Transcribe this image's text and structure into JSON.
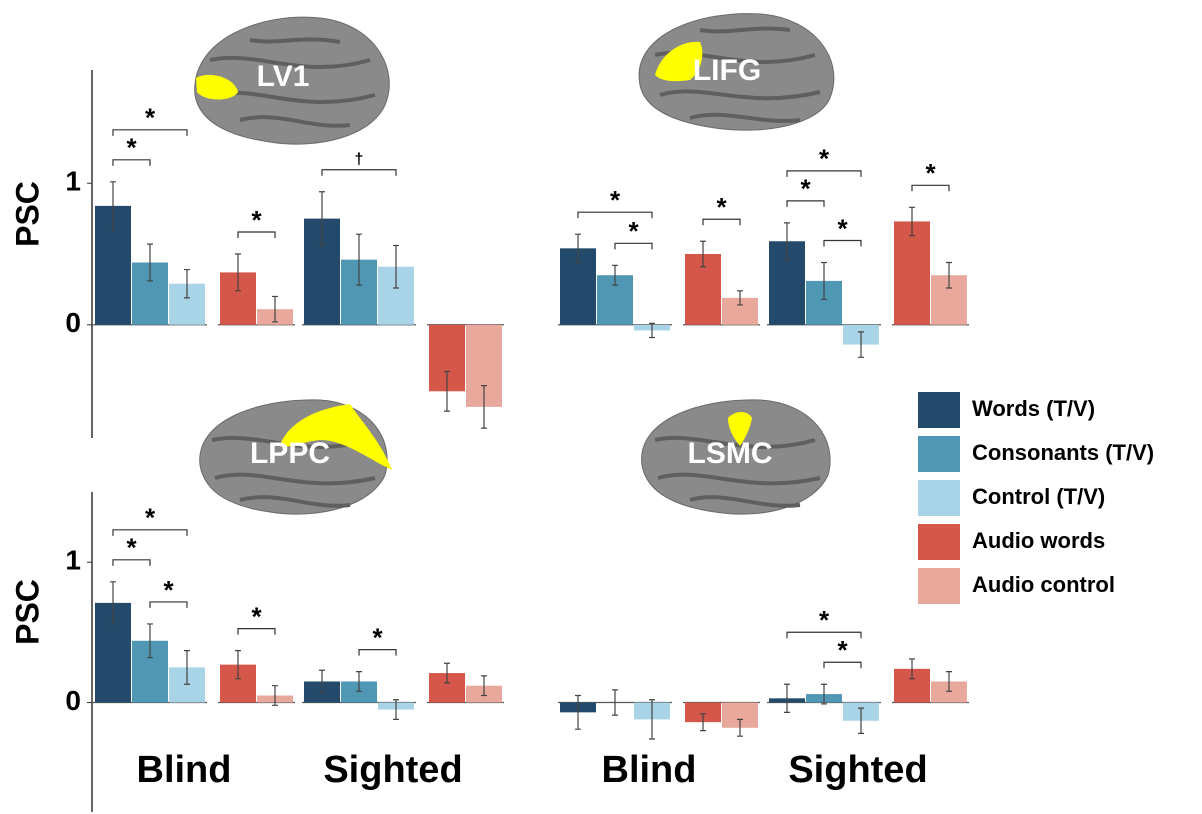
{
  "chart_data": [
    {
      "type": "bar",
      "title": "LV1",
      "ylabel": "PSC",
      "ylim": [
        -0.8,
        1.8
      ],
      "yticks": [
        0,
        1
      ],
      "categories": [
        null,
        null
      ],
      "series": [
        {
          "name": "Words (T/V)",
          "color": "#234a6b",
          "values": [
            0.84,
            0.75
          ],
          "errors": [
            0.17,
            0.19
          ]
        },
        {
          "name": "Consonants (T/V)",
          "color": "#4f97b3",
          "values": [
            0.44,
            0.46
          ],
          "errors": [
            0.13,
            0.18
          ]
        },
        {
          "name": "Control (T/V)",
          "color": "#a9d3e6",
          "values": [
            0.29,
            0.41
          ],
          "errors": [
            0.1,
            0.15
          ]
        },
        {
          "name": "Audio words",
          "color": "#d4574a",
          "values": [
            0.37,
            -0.47
          ],
          "errors": [
            0.13,
            0.14
          ]
        },
        {
          "name": "Audio control",
          "color": "#e8a89c",
          "values": [
            0.11,
            -0.58
          ],
          "errors": [
            0.09,
            0.15
          ]
        }
      ],
      "comparisons": [
        {
          "label": "*",
          "category": 0,
          "from": 0,
          "to": 1
        },
        {
          "label": "*",
          "category": 0,
          "from": 0,
          "to": 2
        },
        {
          "label": "*",
          "category": 0,
          "from": 3,
          "to": 4
        },
        {
          "label": "†",
          "category": 1,
          "from": 0,
          "to": 2
        }
      ]
    },
    {
      "type": "bar",
      "title": "LIFG",
      "ylim": [
        -0.8,
        1.8
      ],
      "categories": [
        null,
        null
      ],
      "series": [
        {
          "name": "Words (T/V)",
          "color": "#234a6b",
          "values": [
            0.54,
            0.59
          ],
          "errors": [
            0.1,
            0.13
          ]
        },
        {
          "name": "Consonants (T/V)",
          "color": "#4f97b3",
          "values": [
            0.35,
            0.31
          ],
          "errors": [
            0.07,
            0.13
          ]
        },
        {
          "name": "Control (T/V)",
          "color": "#a9d3e6",
          "values": [
            -0.04,
            -0.14
          ],
          "errors": [
            0.05,
            0.09
          ]
        },
        {
          "name": "Audio words",
          "color": "#d4574a",
          "values": [
            0.5,
            0.73
          ],
          "errors": [
            0.09,
            0.1
          ]
        },
        {
          "name": "Audio control",
          "color": "#e8a89c",
          "values": [
            0.19,
            0.35
          ],
          "errors": [
            0.05,
            0.09
          ]
        }
      ],
      "comparisons": [
        {
          "label": "*",
          "category": 0,
          "from": 1,
          "to": 2
        },
        {
          "label": "*",
          "category": 0,
          "from": 0,
          "to": 2
        },
        {
          "label": "*",
          "category": 0,
          "from": 3,
          "to": 4
        },
        {
          "label": "*",
          "category": 1,
          "from": 1,
          "to": 2
        },
        {
          "label": "*",
          "category": 1,
          "from": 0,
          "to": 1
        },
        {
          "label": "*",
          "category": 1,
          "from": 0,
          "to": 2
        },
        {
          "label": "*",
          "category": 1,
          "from": 3,
          "to": 4
        }
      ]
    },
    {
      "type": "bar",
      "title": "LPPC",
      "ylabel": "PSC",
      "ylim": [
        -0.78,
        1.5
      ],
      "yticks": [
        0,
        1
      ],
      "categories": [
        "Blind",
        "Sighted"
      ],
      "series": [
        {
          "name": "Words (T/V)",
          "color": "#234a6b",
          "values": [
            0.71,
            0.15
          ],
          "errors": [
            0.15,
            0.08
          ]
        },
        {
          "name": "Consonants (T/V)",
          "color": "#4f97b3",
          "values": [
            0.44,
            0.15
          ],
          "errors": [
            0.12,
            0.07
          ]
        },
        {
          "name": "Control (T/V)",
          "color": "#a9d3e6",
          "values": [
            0.25,
            -0.05
          ],
          "errors": [
            0.12,
            0.07
          ]
        },
        {
          "name": "Audio words",
          "color": "#d4574a",
          "values": [
            0.27,
            0.21
          ],
          "errors": [
            0.1,
            0.07
          ]
        },
        {
          "name": "Audio control",
          "color": "#e8a89c",
          "values": [
            0.05,
            0.12
          ],
          "errors": [
            0.07,
            0.07
          ]
        }
      ],
      "comparisons": [
        {
          "label": "*",
          "category": 0,
          "from": 1,
          "to": 2
        },
        {
          "label": "*",
          "category": 0,
          "from": 0,
          "to": 1
        },
        {
          "label": "*",
          "category": 0,
          "from": 0,
          "to": 2
        },
        {
          "label": "*",
          "category": 0,
          "from": 3,
          "to": 4
        },
        {
          "label": "*",
          "category": 1,
          "from": 1,
          "to": 2
        }
      ]
    },
    {
      "type": "bar",
      "title": "LSMC",
      "ylim": [
        -0.78,
        1.5
      ],
      "categories": [
        "Blind",
        "Sighted"
      ],
      "series": [
        {
          "name": "Words (T/V)",
          "color": "#234a6b",
          "values": [
            -0.07,
            0.03
          ],
          "errors": [
            0.12,
            0.1
          ]
        },
        {
          "name": "Consonants (T/V)",
          "color": "#4f97b3",
          "values": [
            0,
            0.06
          ],
          "errors": [
            0.09,
            0.07
          ]
        },
        {
          "name": "Control (T/V)",
          "color": "#a9d3e6",
          "values": [
            -0.12,
            -0.13
          ],
          "errors": [
            0.14,
            0.09
          ]
        },
        {
          "name": "Audio words",
          "color": "#d4574a",
          "values": [
            -0.14,
            0.24
          ],
          "errors": [
            0.06,
            0.07
          ]
        },
        {
          "name": "Audio control",
          "color": "#e8a89c",
          "values": [
            -0.18,
            0.15
          ],
          "errors": [
            0.06,
            0.07
          ]
        }
      ],
      "comparisons": [
        {
          "label": "*",
          "category": 1,
          "from": 1,
          "to": 2
        },
        {
          "label": "*",
          "category": 1,
          "from": 0,
          "to": 2
        }
      ]
    }
  ]
}
